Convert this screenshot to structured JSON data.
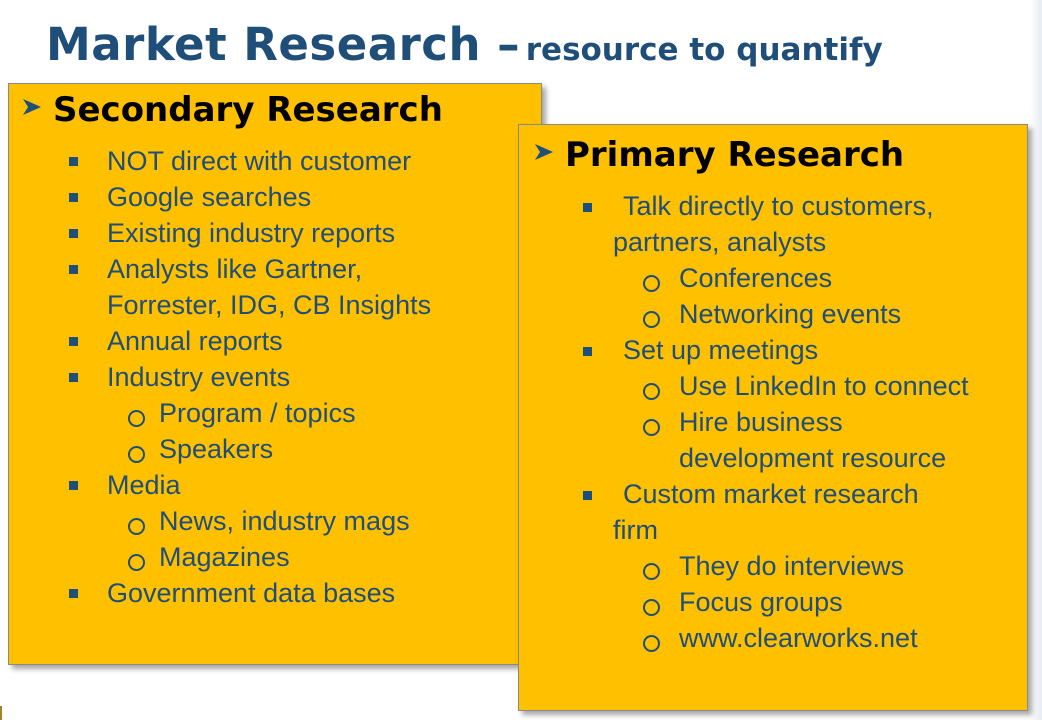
{
  "title": {
    "main": "Market Research –",
    "sub": "resource to quantify"
  },
  "secondary": {
    "heading": "Secondary Research",
    "items": [
      "NOT direct with customer",
      "Google searches",
      "Existing industry reports",
      "Analysts like Gartner,",
      "Forrester, IDG, CB Insights",
      "Annual reports",
      "Industry events",
      "Media",
      "Government data bases"
    ],
    "subitems": [
      "Program / topics",
      "Speakers",
      "News, industry mags",
      "Magazines"
    ]
  },
  "primary": {
    "heading": "Primary Research",
    "items": [
      "Talk directly to customers,",
      "partners, analysts",
      "Set up meetings",
      "Custom market research",
      "firm"
    ],
    "subitems": [
      "Conferences",
      "Networking events",
      "Use LinkedIn to connect",
      "Hire business",
      "development resource",
      "They do interviews",
      "Focus groups",
      "www.clearworks.net"
    ]
  },
  "colors": {
    "accent": "#1f4e79",
    "panel": "#ffc000"
  }
}
